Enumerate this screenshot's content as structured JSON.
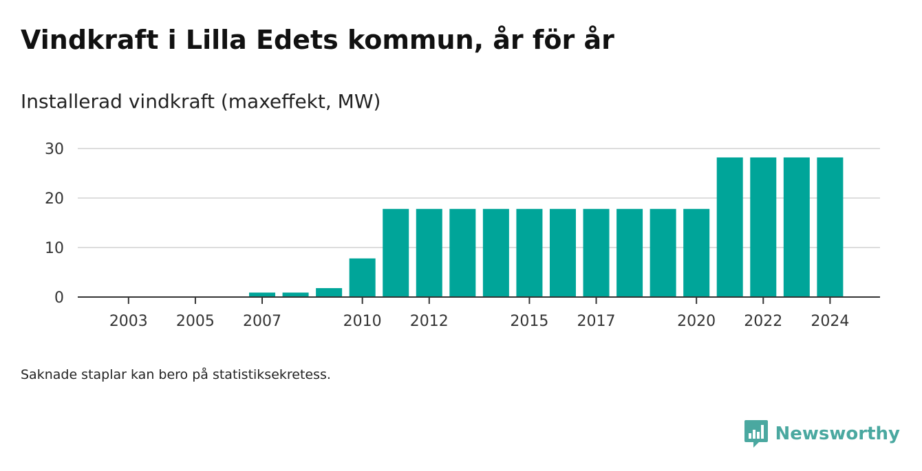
{
  "title": "Vindkraft i Lilla Edets kommun, år för år",
  "subtitle": "Installerad vindkraft (maxeffekt, MW)",
  "footnote": "Saknade staplar kan bero på statistiksekretess.",
  "brand": {
    "name": "Newsworthy",
    "logo_icon": "newsworthy-logo-icon",
    "color": "#4aa8a0"
  },
  "colors": {
    "bar": "#00a599",
    "grid": "#dddddd",
    "axis": "#333333"
  },
  "chart_data": {
    "type": "bar",
    "title": "Vindkraft i Lilla Edets kommun, år för år",
    "subtitle": "Installerad vindkraft (maxeffekt, MW)",
    "xlabel": "",
    "ylabel": "",
    "categories": [
      "2002",
      "2003",
      "2004",
      "2005",
      "2006",
      "2007",
      "2008",
      "2009",
      "2010",
      "2011",
      "2012",
      "2013",
      "2014",
      "2015",
      "2016",
      "2017",
      "2018",
      "2019",
      "2020",
      "2021",
      "2022",
      "2023",
      "2024"
    ],
    "values": [
      0,
      0,
      0,
      0,
      0,
      0.9,
      0.9,
      1.8,
      7.8,
      17.8,
      17.8,
      17.8,
      17.8,
      17.8,
      17.8,
      17.8,
      17.8,
      17.8,
      17.8,
      28.2,
      28.2,
      28.2,
      28.2
    ],
    "x_tick_labels": [
      "2003",
      "2005",
      "2007",
      "2010",
      "2012",
      "2015",
      "2017",
      "2020",
      "2022",
      "2024"
    ],
    "y_ticks": [
      0,
      10,
      20,
      30
    ],
    "ylim": [
      0,
      30
    ],
    "grid": true,
    "legend": "none"
  }
}
